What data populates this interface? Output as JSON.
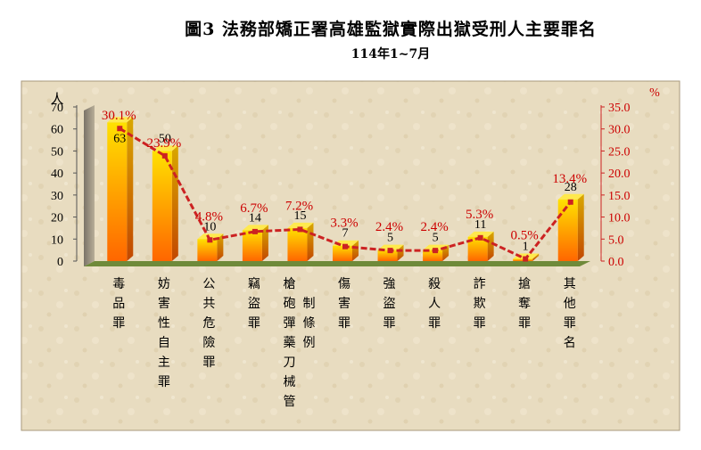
{
  "title": "圖3  法務部矯正署高雄監獄實際出獄受刑人主要罪名",
  "subtitle": "114年1~7月",
  "colors": {
    "bar_top": "#ffd800",
    "bar_bottom": "#ff6a00",
    "line": "#cc2222",
    "pct_text": "#cc0000",
    "panel_bg": "#e6d8b8",
    "floor": "#6f8a3a"
  },
  "chart_data": {
    "type": "bar",
    "categories": [
      "毒品罪",
      "妨害性自主罪",
      "公共危險罪",
      "竊盜罪",
      "槍砲彈藥刀械管制條例",
      "傷害罪",
      "強盜罪",
      "殺人罪",
      "詐欺罪",
      "搶奪罪",
      "其他罪名"
    ],
    "category_columns": [
      [
        "毒品罪"
      ],
      [
        "妨害性自主罪"
      ],
      [
        "公共危險罪"
      ],
      [
        "竊盜罪"
      ],
      [
        "槍砲彈藥刀械管",
        "制條例"
      ],
      [
        "傷害罪"
      ],
      [
        "強盜罪"
      ],
      [
        "殺人罪"
      ],
      [
        "詐欺罪"
      ],
      [
        "搶奪罪"
      ],
      [
        "其他罪名"
      ]
    ],
    "values": [
      63,
      50,
      10,
      14,
      15,
      7,
      5,
      5,
      11,
      1,
      28
    ],
    "percent": [
      30.1,
      23.9,
      4.8,
      6.7,
      7.2,
      3.3,
      2.4,
      2.4,
      5.3,
      0.5,
      13.4
    ],
    "percent_labels": [
      "30.1%",
      "23.9%",
      "4.8%",
      "6.7%",
      "7.2%",
      "3.3%",
      "2.4%",
      "2.4%",
      "5.3%",
      "0.5%",
      "13.4%"
    ],
    "left_axis": {
      "label": "人",
      "ticks": [
        "0",
        "10",
        "20",
        "30",
        "40",
        "50",
        "60",
        "70"
      ],
      "ylim": [
        0,
        70
      ]
    },
    "right_axis": {
      "label": "%",
      "ticks": [
        "0.0",
        "5.0",
        "10.0",
        "15.0",
        "20.0",
        "25.0",
        "30.0",
        "35.0"
      ],
      "ylim": [
        0,
        35
      ]
    }
  }
}
